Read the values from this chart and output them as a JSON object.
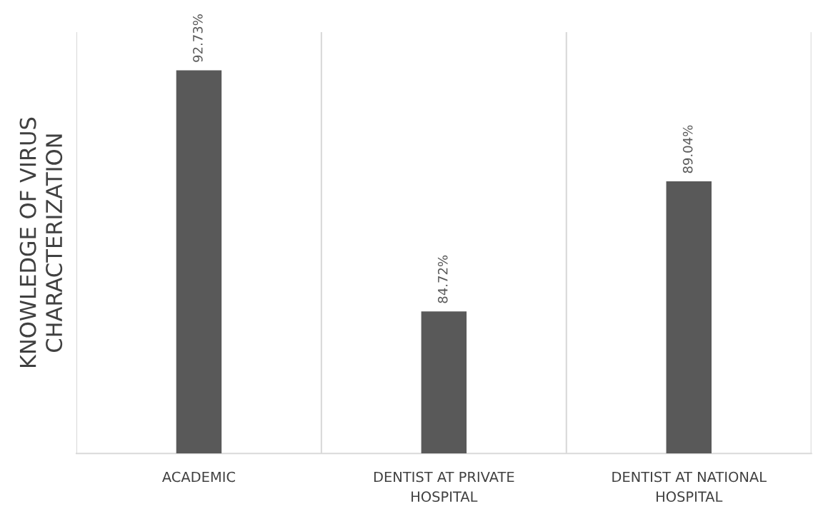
{
  "chart_data": {
    "type": "bar",
    "ylabel": "KNOWLEDGE OF VIRUS\nCHARACTERIZATION",
    "categories": [
      "ACADEMIC",
      "DENTIST AT PRIVATE\nHOSPITAL",
      "DENTIST AT NATIONAL\nHOSPITAL"
    ],
    "values": [
      92.73,
      84.72,
      89.04
    ],
    "value_labels": [
      "92.73%",
      "84.72%",
      "89.04%"
    ],
    "color": "#595959",
    "ylim": [
      80,
      94
    ],
    "grid": "x",
    "tick_labels": "x"
  }
}
